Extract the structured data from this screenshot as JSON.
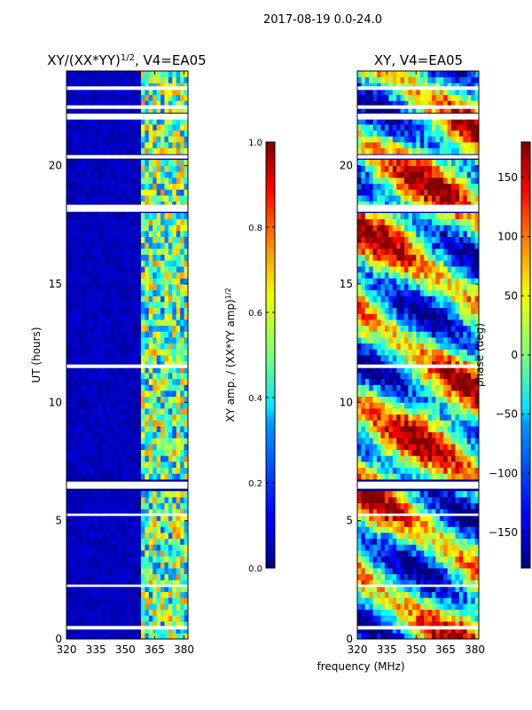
{
  "suptitle": "2017-08-19 0.0-24.0",
  "chart_data": [
    {
      "type": "heatmap",
      "title_main": "XY/(XX*YY)",
      "title_exp": "1/2",
      "title_tail": ", V4=EA05",
      "xlabel": "frequency (MHz)",
      "ylabel": "UT (hours)",
      "xlim": [
        320,
        382
      ],
      "ylim": [
        0,
        24
      ],
      "xticks": [
        320,
        335,
        350,
        365,
        380
      ],
      "yticks": [
        0,
        5,
        10,
        15,
        20
      ],
      "colorbar": {
        "label_main": "XY amp. / (XX*YY amp)",
        "label_exp": "1/2",
        "range": [
          0.0,
          1.0
        ],
        "ticks": [
          "0.0",
          "0.2",
          "0.4",
          "0.6",
          "0.8",
          "1.0"
        ],
        "colormap": "jet"
      }
    },
    {
      "type": "heatmap",
      "title": "XY, V4=EA05",
      "xlim": [
        320,
        382
      ],
      "ylim": [
        0,
        24
      ],
      "xticks": [
        320,
        335,
        350,
        365,
        380
      ],
      "yticks": [
        0,
        5,
        10,
        15,
        20
      ],
      "colorbar": {
        "label": "phase (deg)",
        "range": [
          -180,
          180
        ],
        "ticks": [
          "−150",
          "−100",
          "−50",
          "0",
          "50",
          "100",
          "150"
        ],
        "colormap": "jet"
      }
    }
  ]
}
